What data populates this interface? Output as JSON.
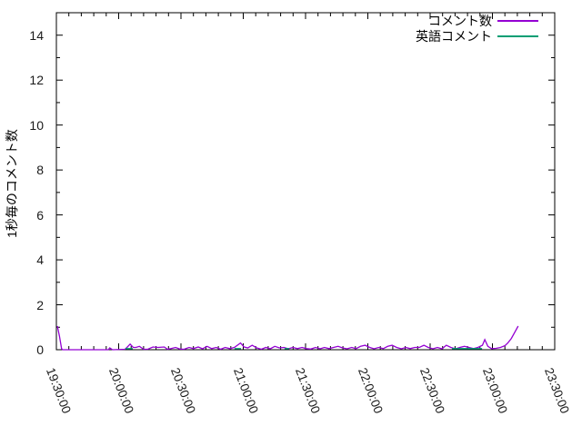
{
  "app": {
    "background": "#ffffff",
    "plot_border_color": "#000000"
  },
  "chart_data": {
    "type": "line",
    "title": "",
    "xlabel": "",
    "ylabel": "1秒毎のコメント数",
    "grid": false,
    "legend_position": "top-right-inside",
    "ylim": [
      0,
      15
    ],
    "y_tick_labels": [
      "0",
      "2",
      "4",
      "6",
      "8",
      "10",
      "12",
      "14"
    ],
    "y_tick_values": [
      0,
      2,
      4,
      6,
      8,
      10,
      12,
      14
    ],
    "y_minor_every": 1,
    "x_range_minutes": [
      0,
      240
    ],
    "x_tick_labels": [
      "19:30:00",
      "20:00:00",
      "20:30:00",
      "21:00:00",
      "21:30:00",
      "22:00:00",
      "22:30:00",
      "23:00:00",
      "23:30:00"
    ],
    "x_major_every_min": 30,
    "x_minor_every_min": 6,
    "series": [
      {
        "name": "コメント数",
        "color": "#9400D3",
        "style": "line",
        "points": [
          [
            0.5,
            1.05
          ],
          [
            1.5,
            0.6
          ],
          [
            2.5,
            0.05
          ],
          [
            3,
            0
          ],
          [
            10,
            0
          ],
          [
            20,
            0
          ],
          [
            25,
            0
          ],
          [
            25.7,
            0.08
          ],
          [
            27,
            0
          ],
          [
            33,
            0.02
          ],
          [
            34,
            0.1
          ],
          [
            35.5,
            0.25
          ],
          [
            37,
            0.1
          ],
          [
            38.3,
            0.1
          ],
          [
            40,
            0.15
          ],
          [
            42,
            0.02
          ],
          [
            44,
            0.02
          ],
          [
            46.5,
            0.12
          ],
          [
            49,
            0.1
          ],
          [
            52,
            0.12
          ],
          [
            53.5,
            0.02
          ],
          [
            55.2,
            0.05
          ],
          [
            57.4,
            0.1
          ],
          [
            59.6,
            0.03
          ],
          [
            61.5,
            0.02
          ],
          [
            63.9,
            0.1
          ],
          [
            66,
            0.05
          ],
          [
            68.3,
            0.12
          ],
          [
            70.4,
            0.04
          ],
          [
            72.6,
            0.15
          ],
          [
            74.8,
            0.05
          ],
          [
            77,
            0.1
          ],
          [
            79.1,
            0.02
          ],
          [
            81.3,
            0.1
          ],
          [
            83.5,
            0.05
          ],
          [
            85.7,
            0.1
          ],
          [
            88.7,
            0.3
          ],
          [
            90.4,
            0.12
          ],
          [
            92.2,
            0.08
          ],
          [
            94.3,
            0.2
          ],
          [
            96.5,
            0.08
          ],
          [
            98.7,
            0.02
          ],
          [
            100.9,
            0.1
          ],
          [
            103,
            0.04
          ],
          [
            105.2,
            0.15
          ],
          [
            107.4,
            0.08
          ],
          [
            109.6,
            0.1
          ],
          [
            111.7,
            0.04
          ],
          [
            113.9,
            0.1
          ],
          [
            116.1,
            0.05
          ],
          [
            118.3,
            0.1
          ],
          [
            120.4,
            0.05
          ],
          [
            122.5,
            0.03
          ],
          [
            124.8,
            0.1
          ],
          [
            127,
            0.04
          ],
          [
            129.1,
            0.1
          ],
          [
            131.3,
            0.05
          ],
          [
            133.5,
            0.1
          ],
          [
            135.7,
            0.15
          ],
          [
            137.8,
            0.08
          ],
          [
            140,
            0.04
          ],
          [
            142.2,
            0.1
          ],
          [
            144.3,
            0.05
          ],
          [
            146.5,
            0.15
          ],
          [
            148.7,
            0.2
          ],
          [
            150.9,
            0.1
          ],
          [
            153,
            0.04
          ],
          [
            155.2,
            0.1
          ],
          [
            157.4,
            0.05
          ],
          [
            159.6,
            0.15
          ],
          [
            161.7,
            0.2
          ],
          [
            163.9,
            0.1
          ],
          [
            166.1,
            0.04
          ],
          [
            168.3,
            0.1
          ],
          [
            170.4,
            0.05
          ],
          [
            172.6,
            0.1
          ],
          [
            174.8,
            0.1
          ],
          [
            177,
            0.2
          ],
          [
            179.1,
            0.1
          ],
          [
            181.3,
            0.04
          ],
          [
            183.5,
            0.1
          ],
          [
            185.7,
            0.04
          ],
          [
            187.8,
            0.2
          ],
          [
            190,
            0.1
          ],
          [
            192.2,
            0.04
          ],
          [
            194.3,
            0.1
          ],
          [
            196.5,
            0.15
          ],
          [
            198.7,
            0.1
          ],
          [
            200.9,
            0.05
          ],
          [
            203,
            0.1
          ],
          [
            205.2,
            0.2
          ],
          [
            206.3,
            0.45
          ],
          [
            207.8,
            0.15
          ],
          [
            209.6,
            0.05
          ],
          [
            211.7,
            0.06
          ],
          [
            213.9,
            0.1
          ],
          [
            216.1,
            0.18
          ],
          [
            217.4,
            0.3
          ],
          [
            219.1,
            0.5
          ],
          [
            220.9,
            0.8
          ],
          [
            222.4,
            1.05
          ]
        ]
      },
      {
        "name": "英語コメント",
        "color": "#009E73",
        "style": "line",
        "segments": [
          [
            [
              33.3,
              0.05
            ],
            [
              36.8,
              0.05
            ]
          ],
          [
            [
              85.8,
              0.05
            ],
            [
              88.9,
              0.05
            ]
          ],
          [
            [
              109.9,
              0.05
            ],
            [
              112.1,
              0.05
            ]
          ],
          [
            [
              190.5,
              0.05
            ],
            [
              205,
              0.05
            ]
          ]
        ]
      }
    ]
  }
}
